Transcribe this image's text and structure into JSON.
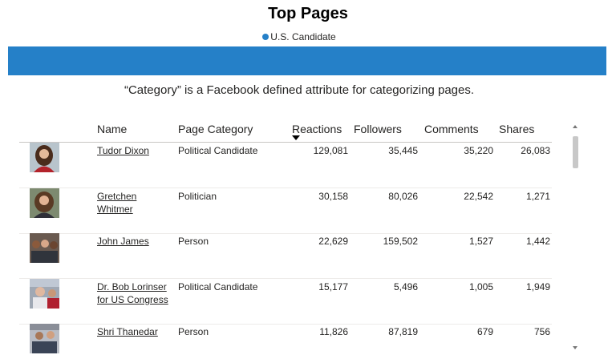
{
  "title": "Top Pages",
  "legend": {
    "label": "U.S. Candidate",
    "color": "#2580c8"
  },
  "banner_color": "#2580c8",
  "subtitle": "“Category” is a Facebook defined attribute for categorizing pages.",
  "table": {
    "columns": [
      "Name",
      "Page Category",
      "Reactions",
      "Followers",
      "Comments",
      "Shares"
    ],
    "sorted_by": "Reactions",
    "rows": [
      {
        "name_line1": "Tudor Dixon",
        "name_line2": "",
        "category": "Political Candidate",
        "reactions": "129,081",
        "followers": "35,445",
        "comments": "35,220",
        "shares": "26,083"
      },
      {
        "name_line1": "Gretchen",
        "name_line2": "Whitmer",
        "category": "Politician",
        "reactions": "30,158",
        "followers": "80,026",
        "comments": "22,542",
        "shares": "1,271"
      },
      {
        "name_line1": "John James",
        "name_line2": "",
        "category": "Person",
        "reactions": "22,629",
        "followers": "159,502",
        "comments": "1,527",
        "shares": "1,442"
      },
      {
        "name_line1": "Dr. Bob Lorinser",
        "name_line2": "for US Congress",
        "category": "Political Candidate",
        "reactions": "15,177",
        "followers": "5,496",
        "comments": "1,005",
        "shares": "1,949"
      },
      {
        "name_line1": "Shri Thanedar",
        "name_line2": "",
        "category": "Person",
        "reactions": "11,826",
        "followers": "87,819",
        "comments": "679",
        "shares": "756"
      }
    ]
  }
}
